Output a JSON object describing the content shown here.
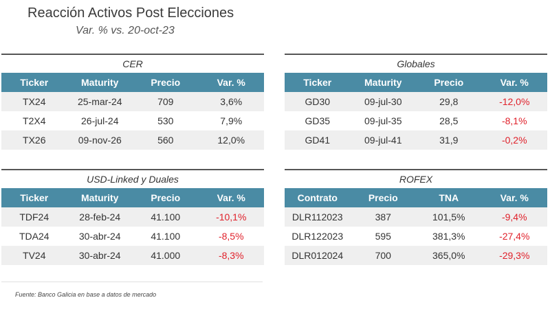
{
  "title": "Reacción Activos Post Elecciones",
  "subtitle": "Var. % vs. 20-oct-23",
  "negative_color": "#e0202a",
  "header_color": "#4a8ba4",
  "tables": [
    {
      "heading": "CER",
      "columns": [
        "Ticker",
        "Maturity",
        "Precio",
        "Var. %"
      ],
      "rows": [
        [
          "TX24",
          "25-mar-24",
          "709",
          "3,6%"
        ],
        [
          "T2X4",
          "26-jul-24",
          "530",
          "7,9%"
        ],
        [
          "TX26",
          "09-nov-26",
          "560",
          "12,0%"
        ]
      ]
    },
    {
      "heading": "Globales",
      "columns": [
        "Ticker",
        "Maturity",
        "Precio",
        "Var. %"
      ],
      "rows": [
        [
          "GD30",
          "09-jul-30",
          "29,8",
          "-12,0%"
        ],
        [
          "GD35",
          "09-jul-35",
          "28,5",
          "-8,1%"
        ],
        [
          "GD41",
          "09-jul-41",
          "31,9",
          "-0,2%"
        ]
      ]
    },
    {
      "heading": "USD-Linked y Duales",
      "columns": [
        "Ticker",
        "Maturity",
        "Precio",
        "Var. %"
      ],
      "rows": [
        [
          "TDF24",
          "28-feb-24",
          "41.100",
          "-10,1%"
        ],
        [
          "TDA24",
          "30-abr-24",
          "41.100",
          "-8,5%"
        ],
        [
          "TV24",
          "30-abr-24",
          "41.000",
          "-8,3%"
        ]
      ]
    },
    {
      "heading": "ROFEX",
      "columns": [
        "Contrato",
        "Precio",
        "TNA",
        "Var. %"
      ],
      "rows": [
        [
          "DLR112023",
          "387",
          "101,5%",
          "-9,4%"
        ],
        [
          "DLR122023",
          "595",
          "381,3%",
          "-27,4%"
        ],
        [
          "DLR012024",
          "700",
          "365,0%",
          "-29,3%"
        ]
      ]
    }
  ],
  "source": "Fuente: Banco Galicia en base a datos de mercado"
}
